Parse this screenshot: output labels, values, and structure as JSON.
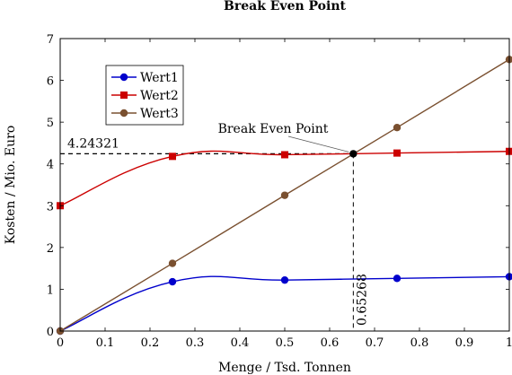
{
  "chart_data": {
    "type": "line",
    "title": "Break Even Point",
    "xlabel": "Menge / Tsd. Tonnen",
    "ylabel": "Kosten / Mio. Euro",
    "xlim": [
      0,
      1
    ],
    "ylim": [
      0,
      7
    ],
    "xticks": [
      0,
      0.1,
      0.2,
      0.3,
      0.4,
      0.5,
      0.6,
      0.7,
      0.8,
      0.9,
      1
    ],
    "xtick_labels": [
      "0",
      "0.1",
      "0.2",
      "0.3",
      "0.4",
      "0.5",
      "0.6",
      "0.7",
      "0.8",
      "0.9",
      "1"
    ],
    "yticks": [
      0,
      1,
      2,
      3,
      4,
      5,
      6,
      7
    ],
    "ytick_labels": [
      "0",
      "1",
      "2",
      "3",
      "4",
      "5",
      "6",
      "7"
    ],
    "grid": false,
    "legend_position": "top-left",
    "series": [
      {
        "name": "Wert1",
        "color": "#0000cc",
        "marker": "circle",
        "x": [
          0,
          0.25,
          0.5,
          0.75,
          1
        ],
        "y": [
          0,
          1.18,
          1.22,
          1.26,
          1.3
        ]
      },
      {
        "name": "Wert2",
        "color": "#cc0000",
        "marker": "square",
        "x": [
          0,
          0.25,
          0.5,
          0.75,
          1
        ],
        "y": [
          3,
          4.18,
          4.22,
          4.26,
          4.3
        ]
      },
      {
        "name": "Wert3",
        "color": "#7a5030",
        "marker": "circle",
        "x": [
          0,
          0.25,
          0.5,
          0.75,
          1
        ],
        "y": [
          0,
          1.62,
          3.25,
          4.87,
          6.5
        ]
      }
    ],
    "break_even": {
      "label": "Break Even Point",
      "x": 0.65268,
      "y": 4.24321,
      "x_label": "0.65268",
      "y_label": "4.24321"
    }
  }
}
